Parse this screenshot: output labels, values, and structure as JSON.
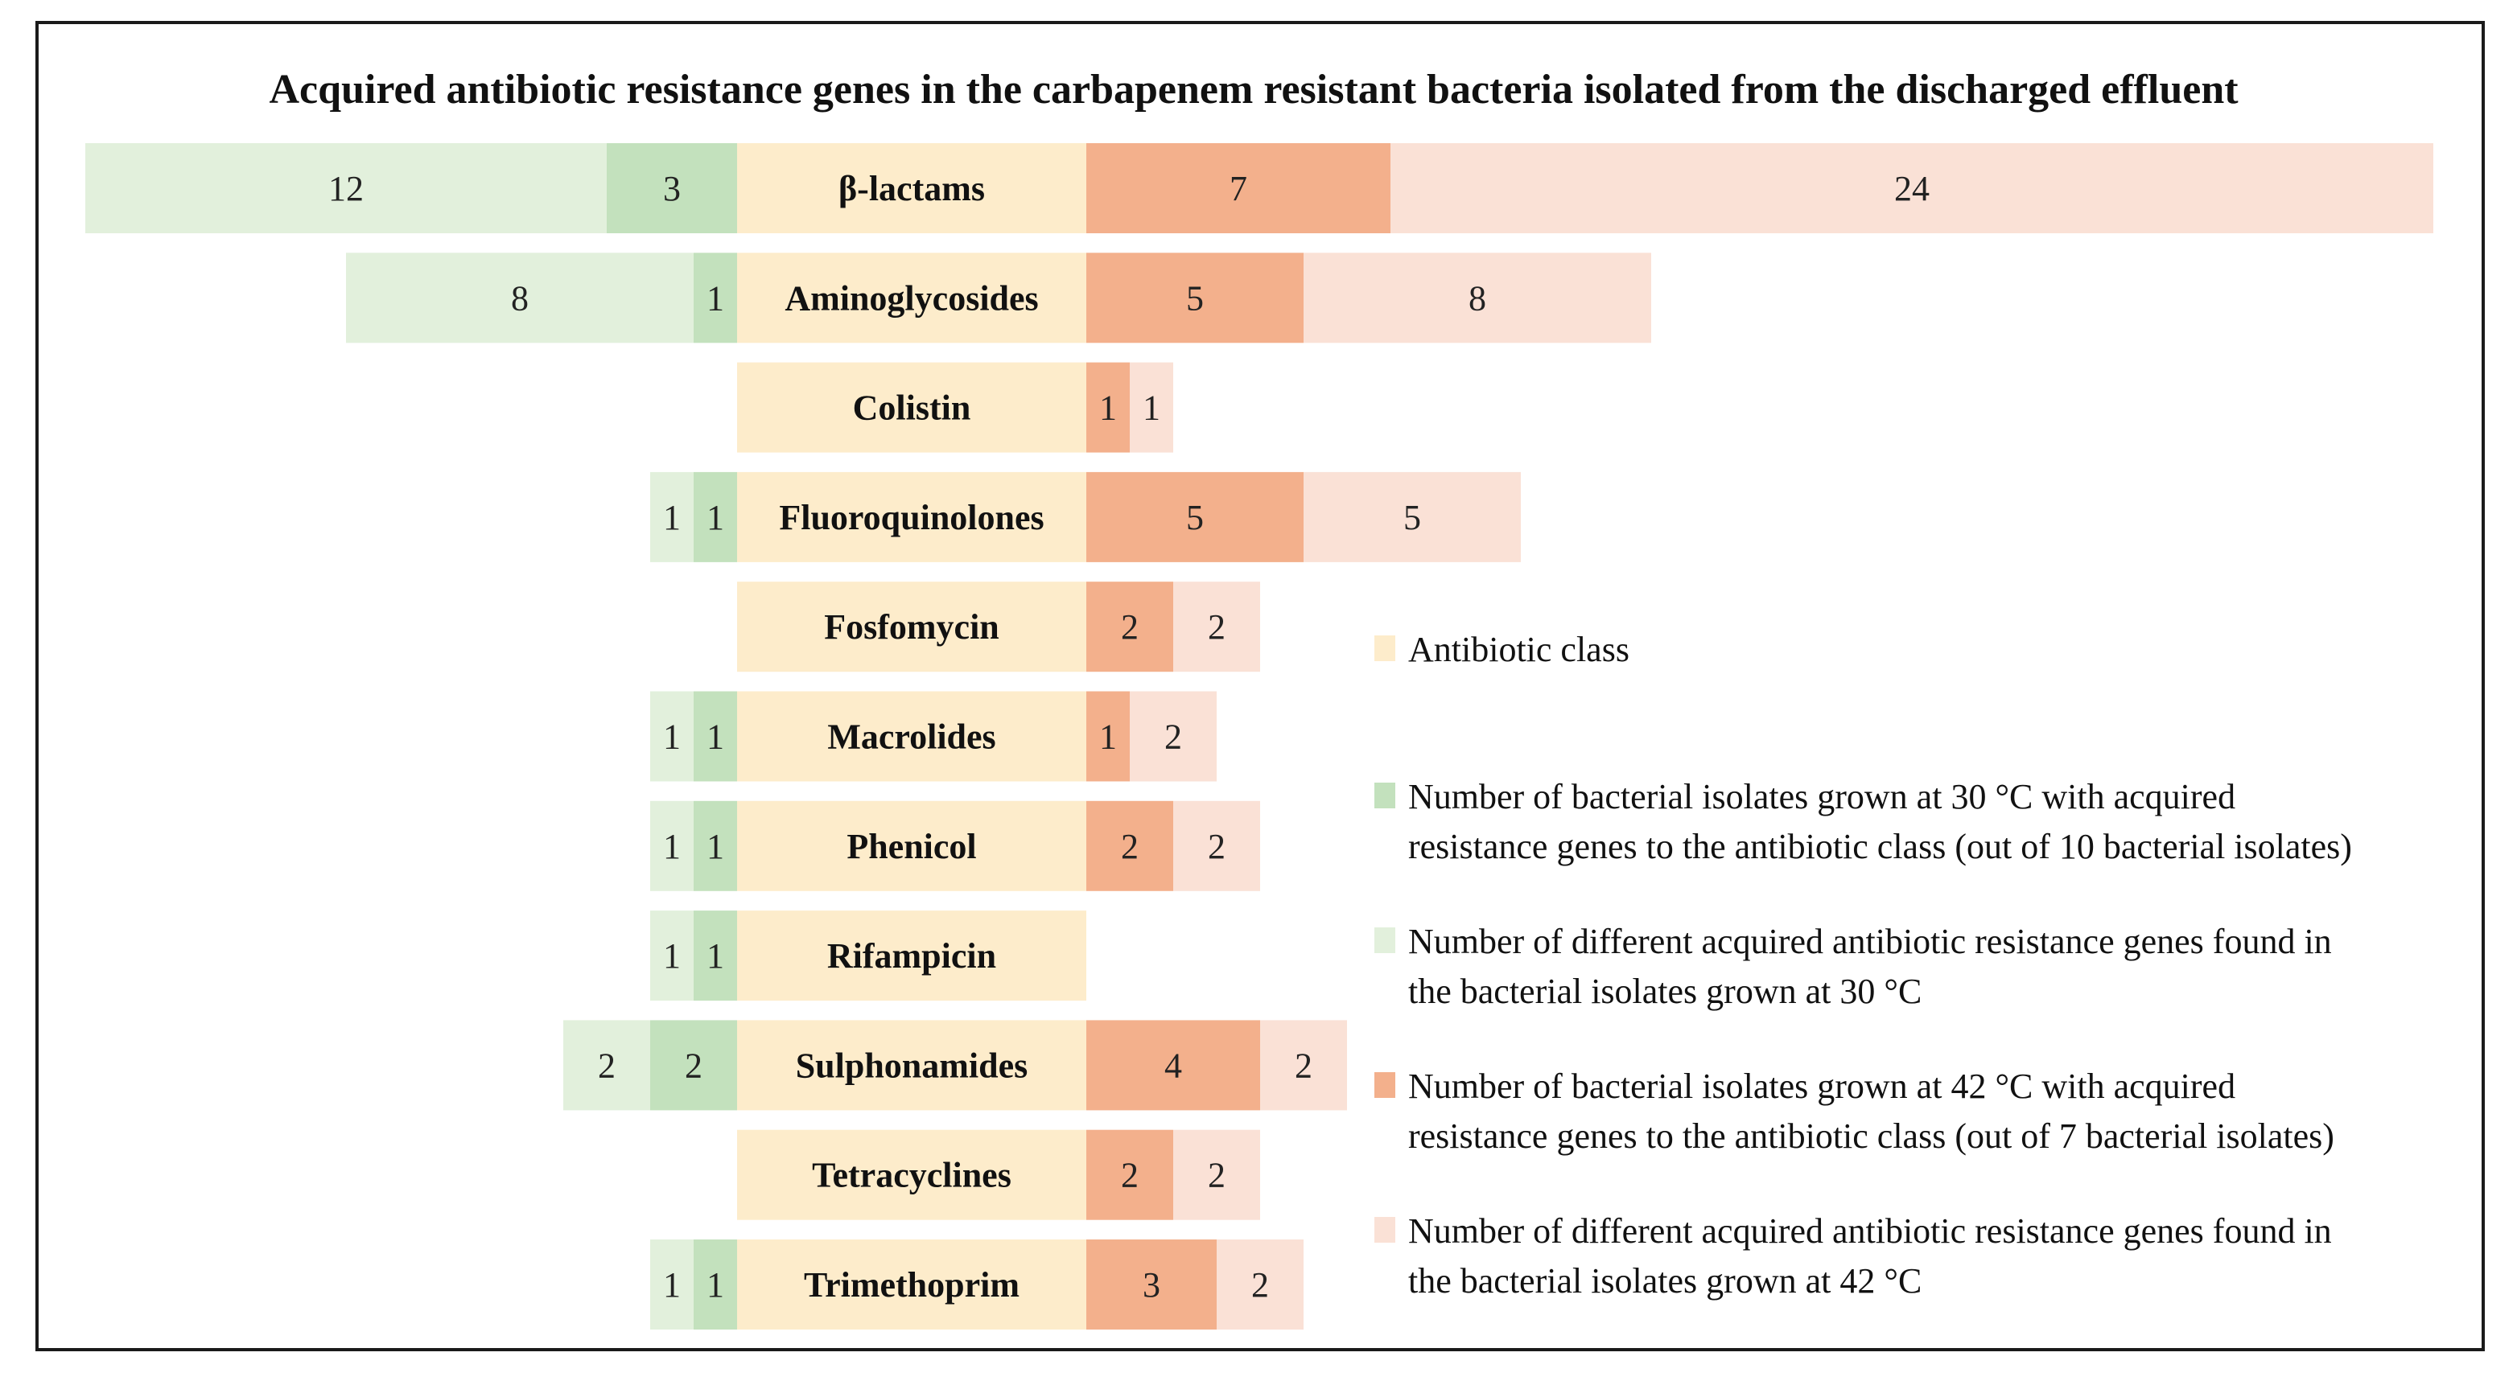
{
  "chart_data": {
    "type": "bar",
    "subtype": "diverging-stacked-horizontal",
    "title": "Acquired antibiotic resistance genes in the carbapenem resistant bacteria isolated from the discharged effluent",
    "categories": [
      "β-lactams",
      "Aminoglycosides",
      "Colistin",
      "Fluoroquinolones",
      "Fosfomycin",
      "Macrolides",
      "Phenicol",
      "Rifampicin",
      "Sulphonamides",
      "Tetracyclines",
      "Trimethoprim"
    ],
    "series": [
      {
        "key": "genes30",
        "name": "Number of different acquired antibiotic resistance genes found in the bacterial isolates grown at 30 °C",
        "side": "left",
        "values": [
          12,
          8,
          0,
          1,
          0,
          1,
          1,
          1,
          2,
          0,
          1
        ]
      },
      {
        "key": "isolates30",
        "name": "Number of bacterial isolates grown at 30 °C with acquired resistance genes to the antibiotic class (out of 10 bacterial isolates)",
        "side": "left",
        "values": [
          3,
          1,
          0,
          1,
          0,
          1,
          1,
          1,
          2,
          0,
          1
        ]
      },
      {
        "key": "isolates42",
        "name": "Number of bacterial isolates grown at 42 °C with acquired resistance genes to the antibiotic class (out of 7 bacterial isolates)",
        "side": "right",
        "values": [
          7,
          5,
          1,
          5,
          2,
          1,
          2,
          0,
          4,
          2,
          3
        ]
      },
      {
        "key": "genes42",
        "name": "Number of different acquired antibiotic resistance genes found in the bacterial isolates grown at 42 °C",
        "side": "right",
        "values": [
          24,
          8,
          1,
          5,
          2,
          2,
          2,
          0,
          2,
          2,
          2
        ]
      }
    ],
    "legend": {
      "placement": "right",
      "items": [
        {
          "key": "class",
          "lines": [
            "Antibiotic class"
          ]
        },
        {
          "key": "isolates30",
          "lines": [
            "Number of bacterial isolates grown at 30 °C with acquired",
            "resistance genes to the antibiotic class (out of 10 bacterial isolates)"
          ]
        },
        {
          "key": "genes30",
          "lines": [
            "Number of different acquired antibiotic resistance genes found in",
            "the bacterial isolates grown at 30 °C"
          ]
        },
        {
          "key": "isolates42",
          "lines": [
            "Number of bacterial isolates grown at 42 °C with acquired",
            "resistance genes to the antibiotic class (out of 7 bacterial isolates)"
          ]
        },
        {
          "key": "genes42",
          "lines": [
            "Number of different acquired antibiotic resistance genes found in",
            "the bacterial isolates grown at 42 °C"
          ]
        }
      ]
    }
  },
  "colors": {
    "class": "#fdeccb",
    "isolates30": "#c3e1bd",
    "genes30": "#e2f0dc",
    "isolates42": "#f3b08c",
    "genes42": "#fae1d6"
  }
}
